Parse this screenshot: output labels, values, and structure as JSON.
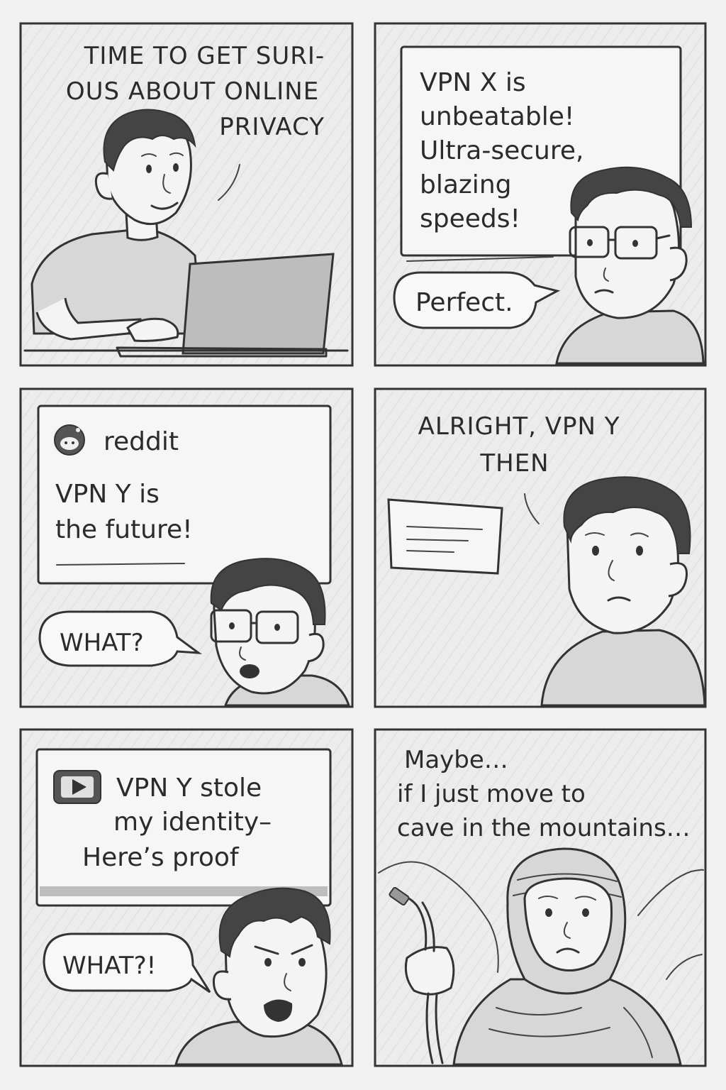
{
  "panels": [
    {
      "caption_lines": [
        "TIME TO GET SURI-",
        "OUS ABOUT ONLINE",
        "PRIVACY"
      ]
    },
    {
      "screen_lines": [
        "VPN X is",
        "unbeatable!",
        "Ultra-secure,",
        "blazing",
        "speeds!"
      ],
      "speech": "Perfect."
    },
    {
      "site_name": "reddit",
      "site_icon": "reddit-icon",
      "post_lines": [
        "VPN Y is",
        "the future!"
      ],
      "speech": "WHAT?"
    },
    {
      "caption_lines": [
        "ALRIGHT, VPN Y",
        "THEN"
      ]
    },
    {
      "video_icon": "play-icon",
      "video_lines": [
        "VPN Y stole",
        "my identity–",
        "Here’s proof"
      ],
      "speech": "WHAT?!"
    },
    {
      "caption_lines": [
        "Maybe…",
        "if I just move to",
        "cave in the mountains…"
      ]
    }
  ]
}
